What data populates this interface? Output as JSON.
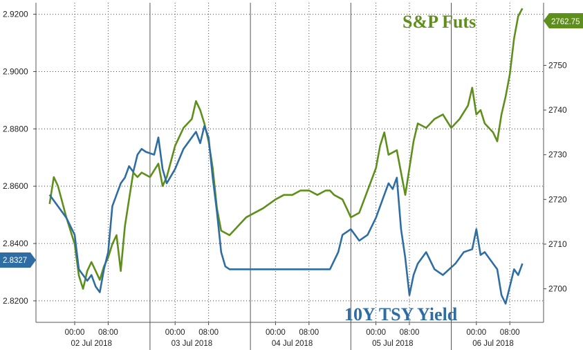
{
  "chart_data": {
    "type": "line",
    "title": "",
    "colors": {
      "yield": "#2e6da4",
      "futures": "#5d8f1a",
      "grid": "#555555"
    },
    "y_left": {
      "ticks": [
        "2.8200",
        "2.8400",
        "2.8600",
        "2.8800",
        "2.9000",
        "2.9200"
      ],
      "range": [
        2.8125,
        2.924
      ]
    },
    "y_right": {
      "ticks": [
        "2700",
        "2710",
        "2720",
        "2730",
        "2740",
        "2750",
        "2760"
      ],
      "range": [
        2692.5,
        2764.0
      ]
    },
    "x_axis": {
      "time_labels": [
        "00:00",
        "08:00",
        "00:00",
        "08:00",
        "00:00",
        "08:00",
        "00:00",
        "08:00",
        "00:00",
        "08:00"
      ],
      "day_labels": [
        "02 Jul 2018",
        "03 Jul 2018",
        "04 Jul 2018",
        "05 Jul 2018",
        "06 Jul 2018"
      ]
    },
    "series": [
      {
        "name": "10Y TSY Yield",
        "axis": "left",
        "last_value": "2.8327",
        "points": [
          [
            "01 Jul 18:00",
            2.857
          ],
          [
            "01 Jul 20:00",
            2.853
          ],
          [
            "01 Jul 22:00",
            2.849
          ],
          [
            "02 Jul 00:00",
            2.843
          ],
          [
            "02 Jul 01:00",
            2.831
          ],
          [
            "02 Jul 02:00",
            2.829
          ],
          [
            "02 Jul 03:00",
            2.827
          ],
          [
            "02 Jul 04:00",
            2.829
          ],
          [
            "02 Jul 05:00",
            2.825
          ],
          [
            "02 Jul 06:00",
            2.823
          ],
          [
            "02 Jul 07:00",
            2.831
          ],
          [
            "02 Jul 08:00",
            2.837
          ],
          [
            "02 Jul 09:00",
            2.853
          ],
          [
            "02 Jul 10:00",
            2.857
          ],
          [
            "02 Jul 11:00",
            2.861
          ],
          [
            "02 Jul 12:00",
            2.863
          ],
          [
            "02 Jul 13:00",
            2.867
          ],
          [
            "02 Jul 14:00",
            2.865
          ],
          [
            "02 Jul 15:00",
            2.871
          ],
          [
            "02 Jul 16:00",
            2.873
          ],
          [
            "02 Jul 17:00",
            2.872
          ],
          [
            "02 Jul 19:00",
            2.871
          ],
          [
            "02 Jul 20:00",
            2.877
          ],
          [
            "02 Jul 21:00",
            2.866
          ],
          [
            "02 Jul 22:00",
            2.861
          ],
          [
            "03 Jul 00:00",
            2.866
          ],
          [
            "03 Jul 02:00",
            2.873
          ],
          [
            "03 Jul 04:00",
            2.877
          ],
          [
            "03 Jul 05:00",
            2.879
          ],
          [
            "03 Jul 06:00",
            2.875
          ],
          [
            "03 Jul 07:00",
            2.881
          ],
          [
            "03 Jul 08:00",
            2.877
          ],
          [
            "03 Jul 09:00",
            2.863
          ],
          [
            "03 Jul 10:00",
            2.851
          ],
          [
            "03 Jul 11:00",
            2.837
          ],
          [
            "03 Jul 12:00",
            2.832
          ],
          [
            "03 Jul 13:00",
            2.831
          ],
          [
            "04 Jul 13:00",
            2.831
          ],
          [
            "04 Jul 15:00",
            2.837
          ],
          [
            "04 Jul 16:00",
            2.843
          ],
          [
            "04 Jul 18:00",
            2.845
          ],
          [
            "04 Jul 20:00",
            2.841
          ],
          [
            "04 Jul 22:00",
            2.843
          ],
          [
            "05 Jul 00:00",
            2.849
          ],
          [
            "05 Jul 02:00",
            2.857
          ],
          [
            "05 Jul 03:00",
            2.861
          ],
          [
            "05 Jul 04:00",
            2.859
          ],
          [
            "05 Jul 05:00",
            2.863
          ],
          [
            "05 Jul 06:00",
            2.845
          ],
          [
            "05 Jul 07:00",
            2.835
          ],
          [
            "05 Jul 08:00",
            2.822
          ],
          [
            "05 Jul 09:00",
            2.829
          ],
          [
            "05 Jul 10:00",
            2.833
          ],
          [
            "05 Jul 12:00",
            2.837
          ],
          [
            "05 Jul 14:00",
            2.831
          ],
          [
            "05 Jul 16:00",
            2.829
          ],
          [
            "05 Jul 19:00",
            2.833
          ],
          [
            "05 Jul 21:00",
            2.837
          ],
          [
            "05 Jul 23:00",
            2.838
          ],
          [
            "06 Jul 00:00",
            2.845
          ],
          [
            "06 Jul 01:00",
            2.836
          ],
          [
            "06 Jul 02:00",
            2.837
          ],
          [
            "06 Jul 04:00",
            2.833
          ],
          [
            "06 Jul 05:00",
            2.831
          ],
          [
            "06 Jul 06:00",
            2.822
          ],
          [
            "06 Jul 07:00",
            2.819
          ],
          [
            "06 Jul 08:00",
            2.825
          ],
          [
            "06 Jul 09:00",
            2.831
          ],
          [
            "06 Jul 10:00",
            2.829
          ],
          [
            "06 Jul 11:00",
            2.833
          ]
        ]
      },
      {
        "name": "S&P Futs",
        "axis": "right",
        "last_value": "2762.75",
        "points": [
          [
            "01 Jul 18:00",
            2719
          ],
          [
            "01 Jul 19:00",
            2725
          ],
          [
            "01 Jul 20:00",
            2723
          ],
          [
            "01 Jul 22:00",
            2716
          ],
          [
            "02 Jul 00:00",
            2710
          ],
          [
            "02 Jul 01:00",
            2703
          ],
          [
            "02 Jul 02:00",
            2700
          ],
          [
            "02 Jul 03:00",
            2704
          ],
          [
            "02 Jul 04:00",
            2706
          ],
          [
            "02 Jul 05:00",
            2704
          ],
          [
            "02 Jul 06:00",
            2702
          ],
          [
            "02 Jul 07:00",
            2705
          ],
          [
            "02 Jul 08:00",
            2707
          ],
          [
            "02 Jul 09:00",
            2710
          ],
          [
            "02 Jul 10:00",
            2712
          ],
          [
            "02 Jul 11:00",
            2704
          ],
          [
            "02 Jul 12:00",
            2714
          ],
          [
            "02 Jul 13:00",
            2720
          ],
          [
            "02 Jul 14:00",
            2726
          ],
          [
            "02 Jul 15:00",
            2725
          ],
          [
            "02 Jul 16:00",
            2726
          ],
          [
            "02 Jul 18:00",
            2725
          ],
          [
            "02 Jul 20:00",
            2728
          ],
          [
            "02 Jul 21:00",
            2723
          ],
          [
            "02 Jul 22:00",
            2725
          ],
          [
            "03 Jul 00:00",
            2732
          ],
          [
            "03 Jul 02:00",
            2736
          ],
          [
            "03 Jul 04:00",
            2738
          ],
          [
            "03 Jul 05:00",
            2742
          ],
          [
            "03 Jul 06:00",
            2740
          ],
          [
            "03 Jul 07:00",
            2737
          ],
          [
            "03 Jul 08:00",
            2733
          ],
          [
            "03 Jul 09:00",
            2727
          ],
          [
            "03 Jul 10:00",
            2718
          ],
          [
            "03 Jul 11:00",
            2713
          ],
          [
            "03 Jul 13:00",
            2712
          ],
          [
            "03 Jul 15:00",
            2714
          ],
          [
            "03 Jul 17:00",
            2716
          ],
          [
            "03 Jul 19:00",
            2717
          ],
          [
            "03 Jul 21:00",
            2718
          ],
          [
            "04 Jul 00:00",
            2720
          ],
          [
            "04 Jul 02:00",
            2721
          ],
          [
            "04 Jul 04:00",
            2721
          ],
          [
            "04 Jul 06:00",
            2722
          ],
          [
            "04 Jul 08:00",
            2722
          ],
          [
            "04 Jul 10:00",
            2721
          ],
          [
            "04 Jul 12:00",
            2722
          ],
          [
            "04 Jul 13:00",
            2722
          ],
          [
            "04 Jul 14:00",
            2721
          ],
          [
            "04 Jul 16:00",
            2720
          ],
          [
            "04 Jul 17:00",
            2718
          ],
          [
            "04 Jul 18:00",
            2716
          ],
          [
            "04 Jul 20:00",
            2717
          ],
          [
            "04 Jul 22:00",
            2722
          ],
          [
            "05 Jul 00:00",
            2727
          ],
          [
            "05 Jul 01:00",
            2732
          ],
          [
            "05 Jul 02:00",
            2735
          ],
          [
            "05 Jul 03:00",
            2730
          ],
          [
            "05 Jul 05:00",
            2731
          ],
          [
            "05 Jul 06:00",
            2726
          ],
          [
            "05 Jul 07:00",
            2721
          ],
          [
            "05 Jul 08:00",
            2727
          ],
          [
            "05 Jul 09:00",
            2733
          ],
          [
            "05 Jul 10:00",
            2737
          ],
          [
            "05 Jul 12:00",
            2736
          ],
          [
            "05 Jul 14:00",
            2738
          ],
          [
            "05 Jul 16:00",
            2739
          ],
          [
            "05 Jul 18:00",
            2736
          ],
          [
            "05 Jul 20:00",
            2738
          ],
          [
            "05 Jul 22:00",
            2741
          ],
          [
            "05 Jul 23:00",
            2745
          ],
          [
            "06 Jul 00:00",
            2739
          ],
          [
            "06 Jul 01:00",
            2740
          ],
          [
            "06 Jul 02:00",
            2737
          ],
          [
            "06 Jul 04:00",
            2735
          ],
          [
            "06 Jul 05:00",
            2733
          ],
          [
            "06 Jul 06:00",
            2739
          ],
          [
            "06 Jul 07:00",
            2743
          ],
          [
            "06 Jul 08:00",
            2748
          ],
          [
            "06 Jul 09:00",
            2756
          ],
          [
            "06 Jul 10:00",
            2761
          ],
          [
            "06 Jul 11:00",
            2762.75
          ]
        ]
      }
    ]
  }
}
